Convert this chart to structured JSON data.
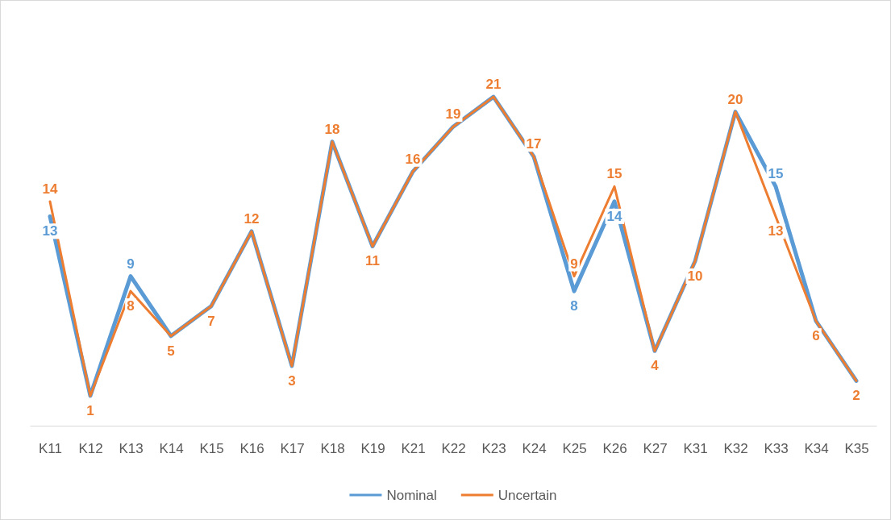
{
  "chart_data": {
    "type": "line",
    "categories": [
      "K11",
      "K12",
      "K13",
      "K14",
      "K15",
      "K16",
      "K17",
      "K18",
      "K19",
      "K21",
      "K22",
      "K23",
      "K24",
      "K25",
      "K26",
      "K27",
      "K31",
      "K32",
      "K33",
      "K34",
      "K35"
    ],
    "series": [
      {
        "name": "Nominal",
        "color": "#5b9bd5",
        "values": [
          13,
          1,
          9,
          5,
          7,
          12,
          3,
          18,
          11,
          16,
          19,
          21,
          17,
          8,
          14,
          4,
          10,
          20,
          15,
          6,
          2
        ],
        "value_labels": [
          "13",
          null,
          "9",
          null,
          null,
          null,
          null,
          null,
          null,
          null,
          null,
          null,
          null,
          "8",
          "14",
          null,
          null,
          null,
          "15",
          null,
          null
        ]
      },
      {
        "name": "Uncertain",
        "color": "#ed7d31",
        "values": [
          14,
          1,
          8,
          5,
          7,
          12,
          3,
          18,
          11,
          16,
          19,
          21,
          17,
          9,
          15,
          4,
          10,
          20,
          13,
          6,
          2
        ],
        "value_labels": [
          "14",
          "1",
          "8",
          "5",
          "7",
          "12",
          "3",
          "18",
          "11",
          "16",
          "19",
          "21",
          "17",
          "9",
          "15",
          "4",
          "10",
          "20",
          "13",
          "6",
          "2"
        ]
      }
    ],
    "legend": "bottom",
    "grid": false,
    "marker": "none",
    "line_style": "solid"
  }
}
